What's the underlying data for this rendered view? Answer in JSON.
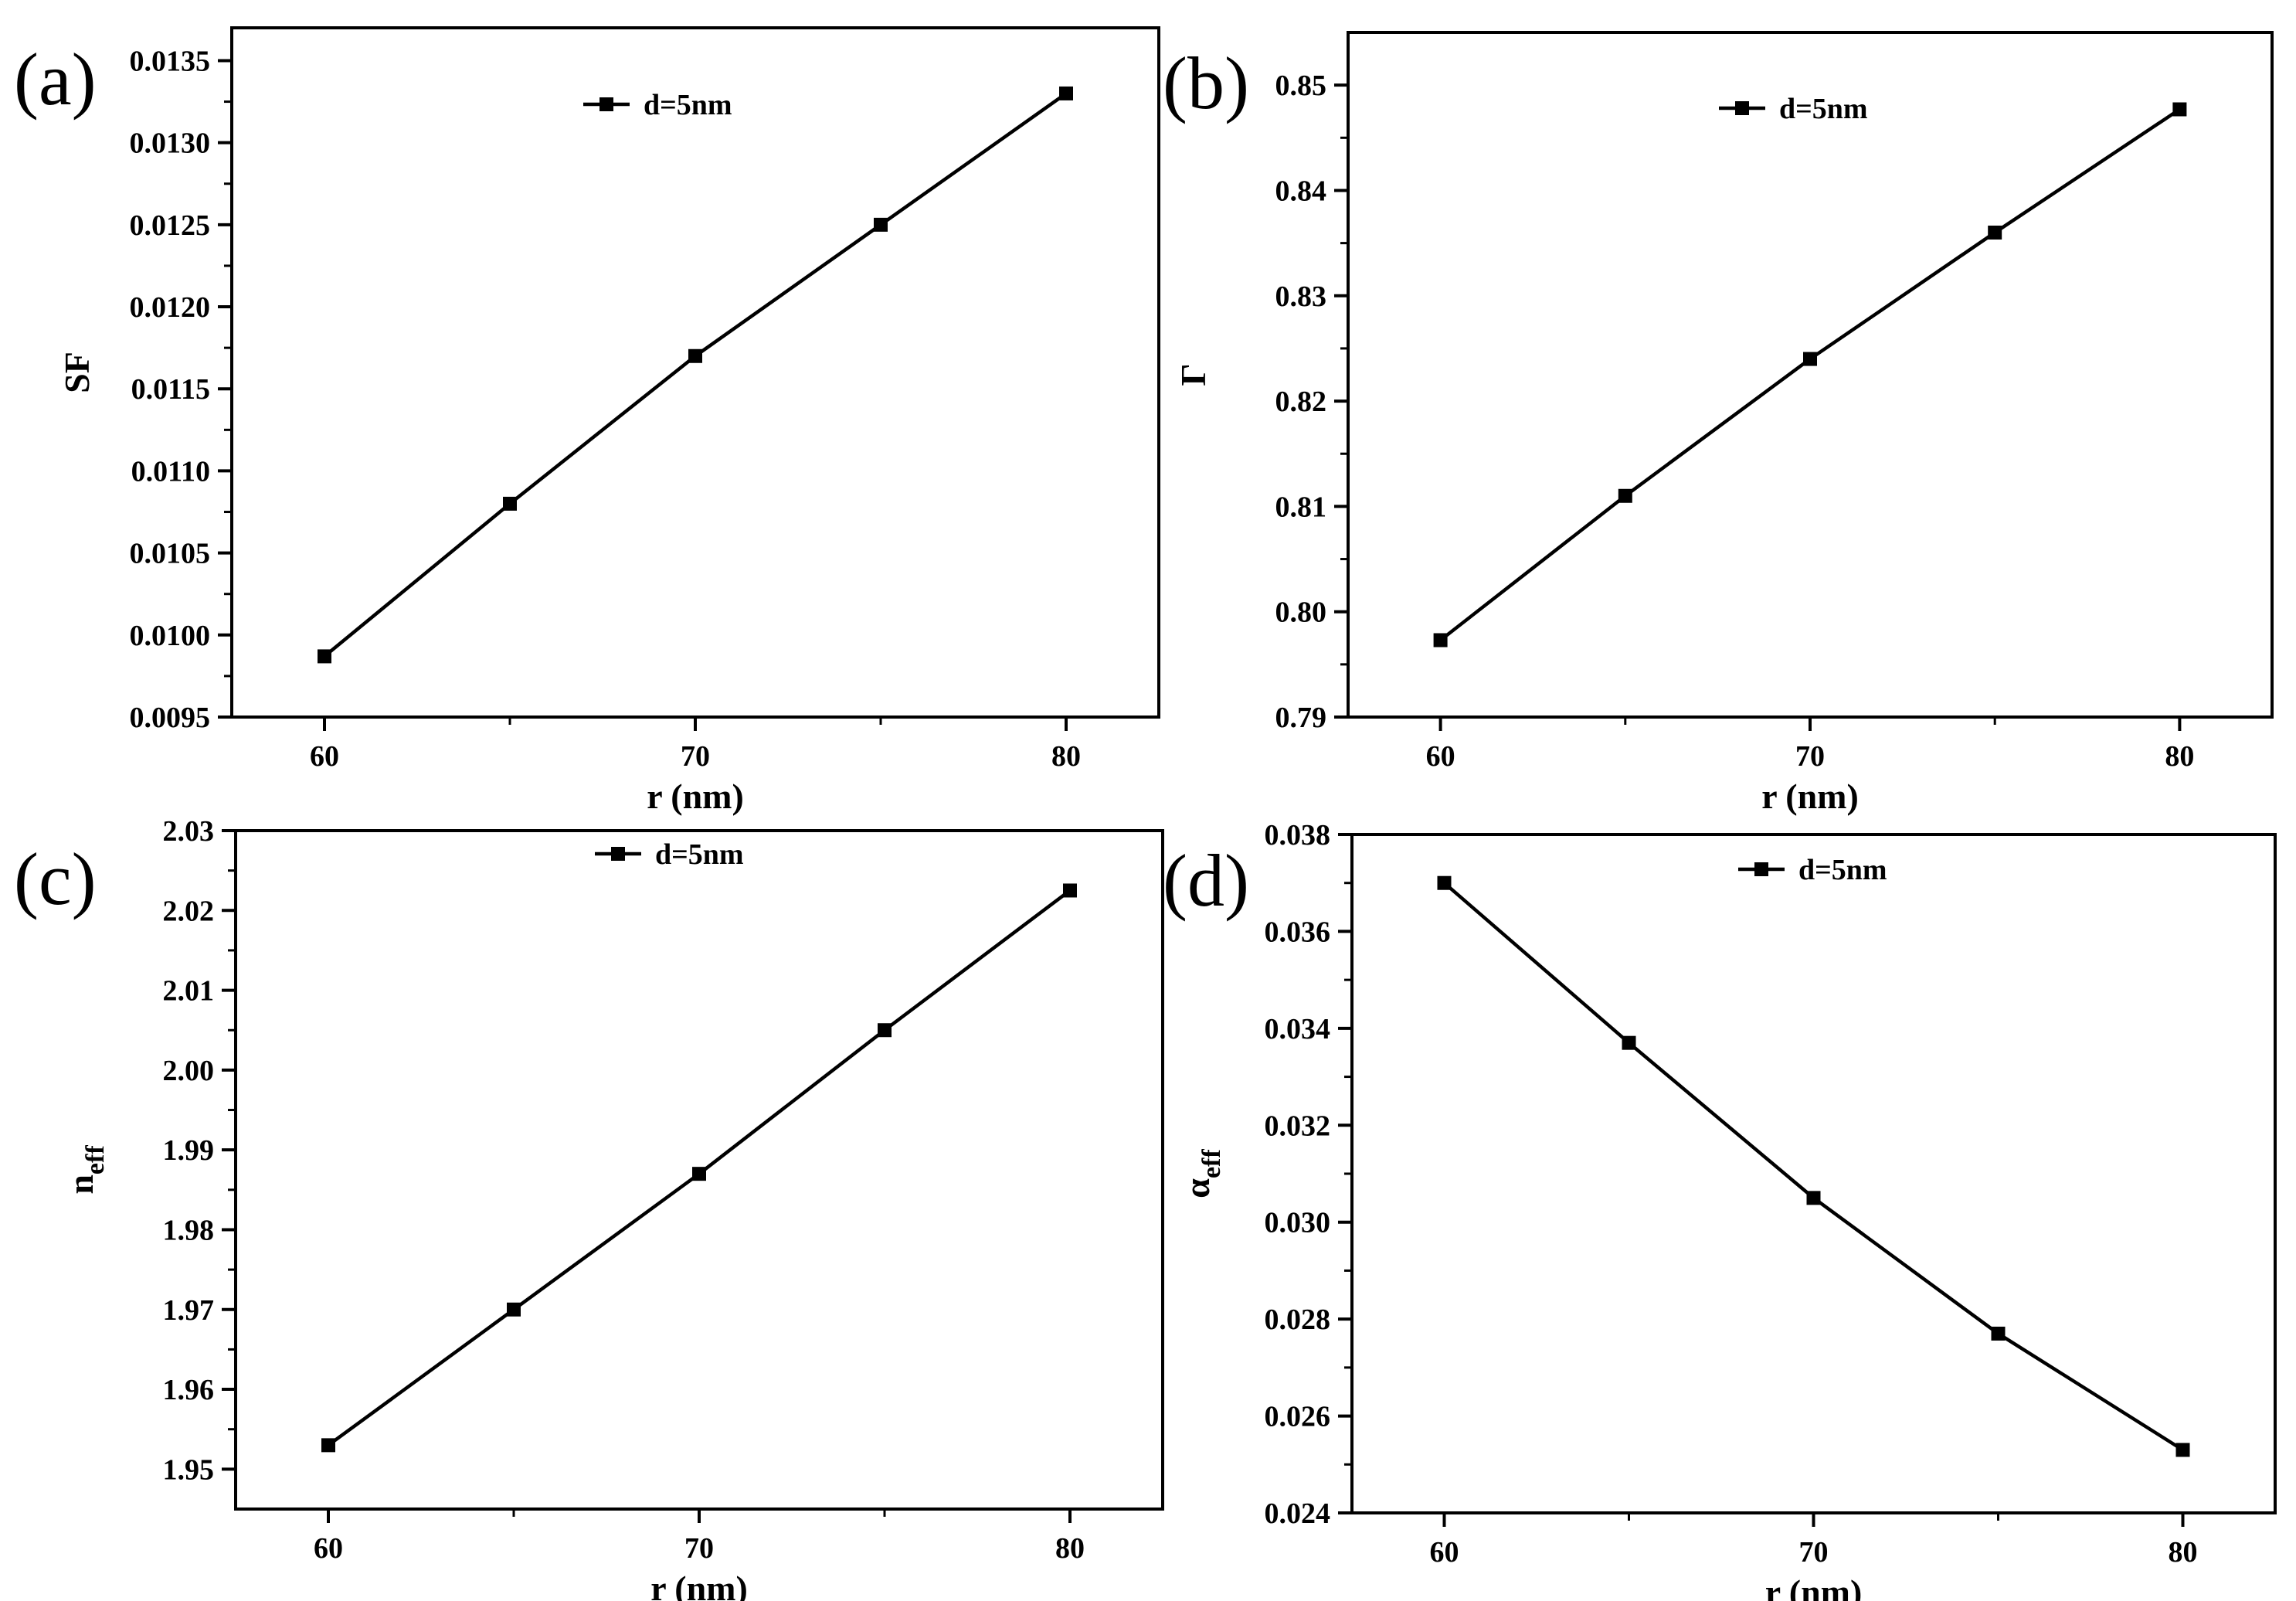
{
  "chart_data": [
    {
      "panel": "(a)",
      "type": "line",
      "xlabel": "r (nm)",
      "ylabel": "SF",
      "ylabel_main": "SF",
      "ylabel_sub": "",
      "x": [
        60,
        65,
        70,
        75,
        80
      ],
      "xlim": [
        57.5,
        82.5
      ],
      "xticks": [
        60,
        70,
        80
      ],
      "ylim": [
        0.0095,
        0.0137
      ],
      "yticks": [
        0.0095,
        0.01,
        0.0105,
        0.011,
        0.0115,
        0.012,
        0.0125,
        0.013,
        0.0135
      ],
      "ytick_labels": [
        "0.0095",
        "0.0100",
        "0.0105",
        "0.0110",
        "0.0115",
        "0.0120",
        "0.0125",
        "0.0130",
        "0.0135"
      ],
      "series": [
        {
          "name": "d=5nm",
          "values": [
            0.00987,
            0.0108,
            0.0117,
            0.0125,
            0.0133
          ]
        }
      ],
      "legend_loc": "top-center",
      "grid": false
    },
    {
      "panel": "(b)",
      "type": "line",
      "xlabel": "r (nm)",
      "ylabel": "Γ",
      "ylabel_main": "Γ",
      "ylabel_sub": "",
      "x": [
        60,
        65,
        70,
        75,
        80
      ],
      "xlim": [
        57.5,
        82.5
      ],
      "xticks": [
        60,
        70,
        80
      ],
      "ylim": [
        0.79,
        0.855
      ],
      "yticks": [
        0.79,
        0.8,
        0.81,
        0.82,
        0.83,
        0.84,
        0.85
      ],
      "ytick_labels": [
        "0.79",
        "0.80",
        "0.81",
        "0.82",
        "0.83",
        "0.84",
        "0.85"
      ],
      "series": [
        {
          "name": "d=5nm",
          "values": [
            0.7973,
            0.811,
            0.824,
            0.836,
            0.8477
          ]
        }
      ],
      "legend_loc": "top-center",
      "grid": false
    },
    {
      "panel": "(c)",
      "type": "line",
      "xlabel": "r (nm)",
      "ylabel": "neff",
      "ylabel_main": "n",
      "ylabel_sub": "eff",
      "x": [
        60,
        65,
        70,
        75,
        80
      ],
      "xlim": [
        57.5,
        82.5
      ],
      "xticks": [
        60,
        70,
        80
      ],
      "ylim": [
        1.945,
        2.03
      ],
      "yticks": [
        1.95,
        1.96,
        1.97,
        1.98,
        1.99,
        2.0,
        2.01,
        2.02,
        2.03
      ],
      "ytick_labels": [
        "1.95",
        "1.96",
        "1.97",
        "1.98",
        "1.99",
        "2.00",
        "2.01",
        "2.02",
        "2.03"
      ],
      "series": [
        {
          "name": "d=5nm",
          "values": [
            1.953,
            1.97,
            1.987,
            2.005,
            2.0225
          ]
        }
      ],
      "legend_loc": "top-center",
      "grid": false
    },
    {
      "panel": "(d)",
      "type": "line",
      "xlabel": "r (nm)",
      "ylabel": "αeff",
      "ylabel_main": "α",
      "ylabel_sub": "eff",
      "x": [
        60,
        65,
        70,
        75,
        80
      ],
      "xlim": [
        57.5,
        82.5
      ],
      "xticks": [
        60,
        70,
        80
      ],
      "ylim": [
        0.024,
        0.038
      ],
      "yticks": [
        0.024,
        0.026,
        0.028,
        0.03,
        0.032,
        0.034,
        0.036,
        0.038
      ],
      "ytick_labels": [
        "0.024",
        "0.026",
        "0.028",
        "0.030",
        "0.032",
        "0.034",
        "0.036",
        "0.038"
      ],
      "series": [
        {
          "name": "d=5nm",
          "values": [
            0.037,
            0.0337,
            0.0305,
            0.0277,
            0.0253
          ]
        }
      ],
      "legend_loc": "top-center",
      "grid": false
    }
  ]
}
